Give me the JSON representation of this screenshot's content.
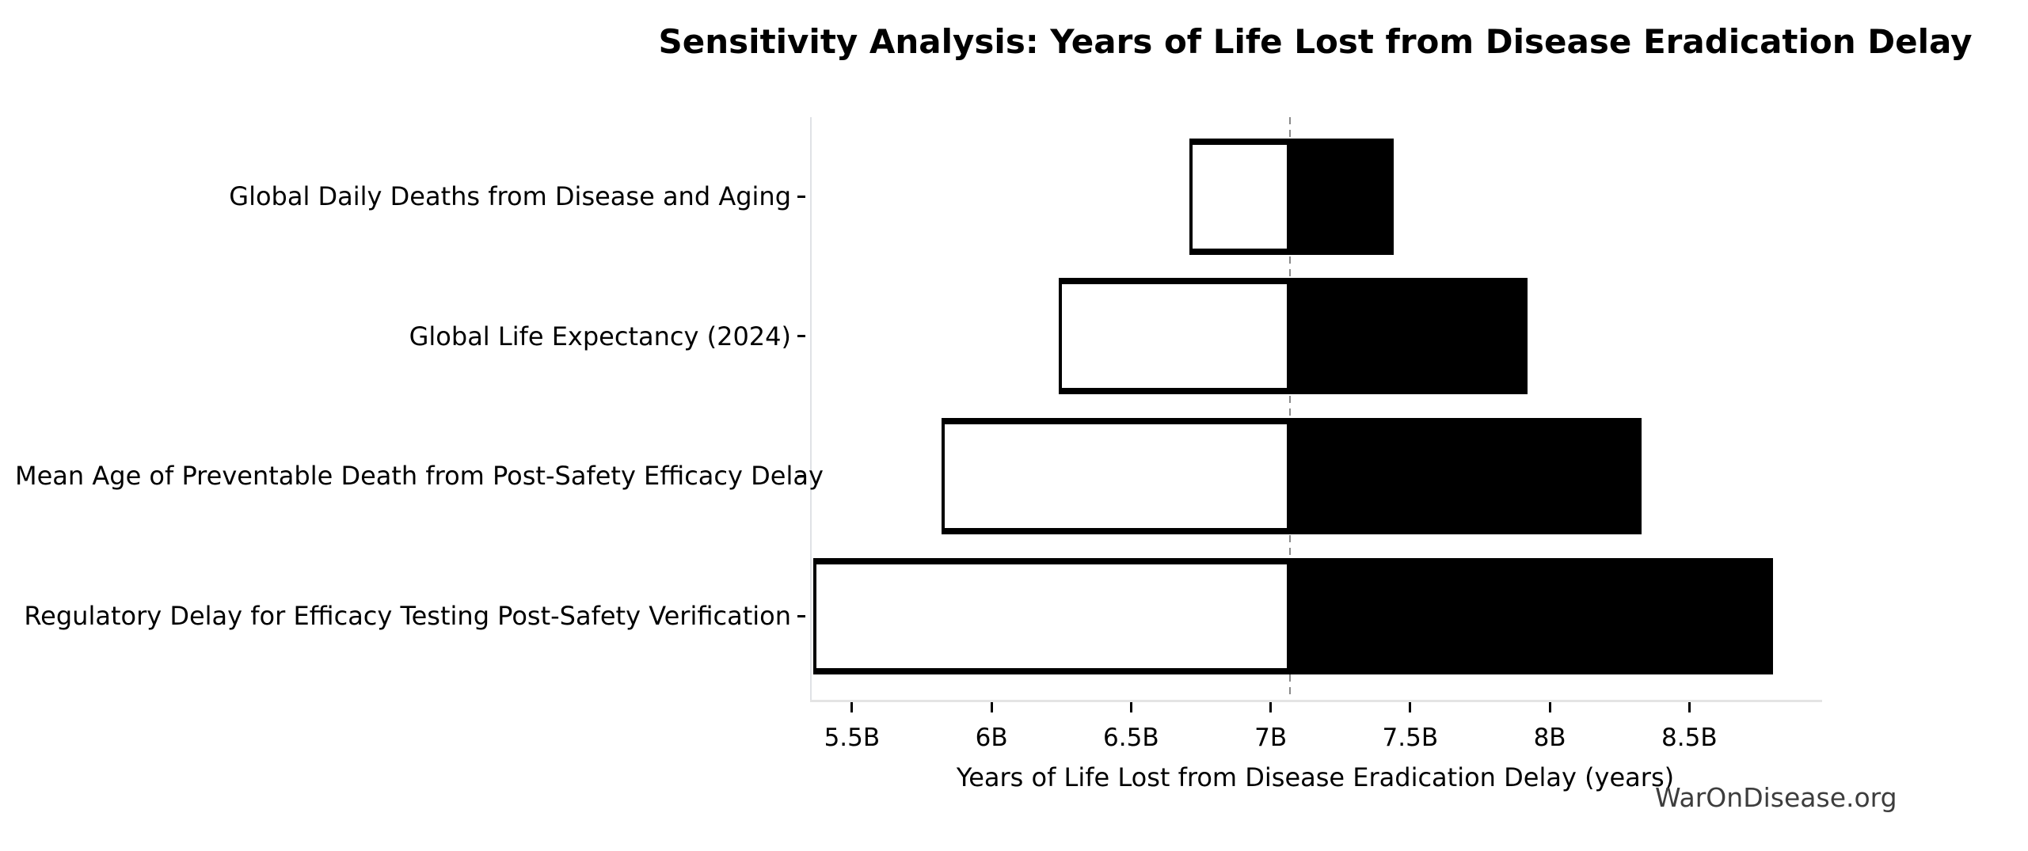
{
  "title": "Sensitivity Analysis: Years of Life Lost from Disease Eradication Delay",
  "watermark": "WarOnDisease.org",
  "chart_data": {
    "type": "bar",
    "variant": "tornado-sensitivity",
    "orientation": "horizontal",
    "title": "Sensitivity Analysis: Years of Life Lost from Disease Eradication Delay",
    "xlabel": "Years of Life Lost from Disease Eradication Delay (years)",
    "ylabel": "",
    "unit": "billions of years",
    "baseline_value": 7.07,
    "xlim": [
      5.35,
      8.97
    ],
    "xticks": {
      "values": [
        5.5,
        6.0,
        6.5,
        7.0,
        7.5,
        8.0,
        8.5
      ],
      "labels": [
        "5.5B",
        "6B",
        "6.5B",
        "7B",
        "7.5B",
        "8B",
        "8.5B"
      ]
    },
    "categories": [
      "Global Daily Deaths from Disease and Aging",
      "Global Life Expectancy (2024)",
      "Mean Age of Preventable Death from Post-Safety Efficacy Delay",
      "Regulatory Delay for Efficacy Testing Post-Safety Verification"
    ],
    "series": [
      {
        "name": "low_extent",
        "values": [
          6.71,
          6.24,
          5.82,
          5.36
        ]
      },
      {
        "name": "high_extent",
        "values": [
          7.44,
          7.92,
          8.33,
          8.8
        ]
      }
    ],
    "style": {
      "low_side_fill": "#ffffff",
      "high_side_fill": "#000000",
      "bar_edge_color": "#000000",
      "baseline_line": "gray dashed vertical",
      "grid": false,
      "legend": "none"
    }
  }
}
